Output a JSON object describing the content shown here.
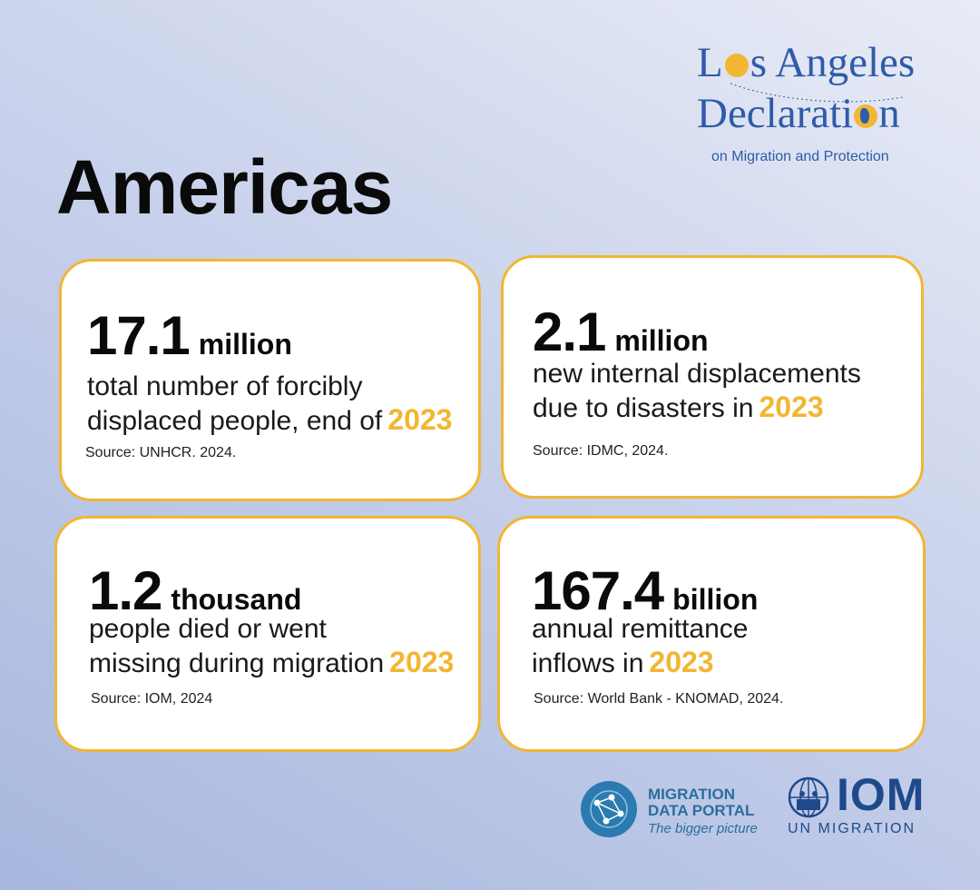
{
  "logo": {
    "line1_a": "L",
    "line1_b": "s Angeles",
    "line2_a": "Declarati",
    "line2_b": "n",
    "subtitle": "on Migration and Protection"
  },
  "title": "Americas",
  "cards": [
    {
      "number": "17.1",
      "unit": "million",
      "line1": "total number of forcibly",
      "line2": "displaced people, end of",
      "year": "2023",
      "source": "Source: UNHCR. 2024."
    },
    {
      "number": "2.1",
      "unit": "million",
      "line1": "new internal displacements",
      "line2": "due to disasters in",
      "year": "2023",
      "source": "Source: IDMC, 2024."
    },
    {
      "number": "1.2",
      "unit": "thousand",
      "line1": "people died or went",
      "line2": "missing during migration",
      "year": "2023",
      "source": "Source: IOM, 2024"
    },
    {
      "number": "167.4",
      "unit": "billion",
      "line1": "annual remittance",
      "line2": "inflows in",
      "year": "2023",
      "source": "Source: World Bank - KNOMAD, 2024."
    }
  ],
  "footer": {
    "mdp_line1": "MIGRATION",
    "mdp_line2": "DATA PORTAL",
    "mdp_tagline": "The bigger picture",
    "iom_name": "IOM",
    "iom_sub": "UN MIGRATION"
  },
  "colors": {
    "accent": "#f2b632",
    "brand_blue": "#2f5ba8",
    "iom_blue": "#1e4a8c"
  }
}
